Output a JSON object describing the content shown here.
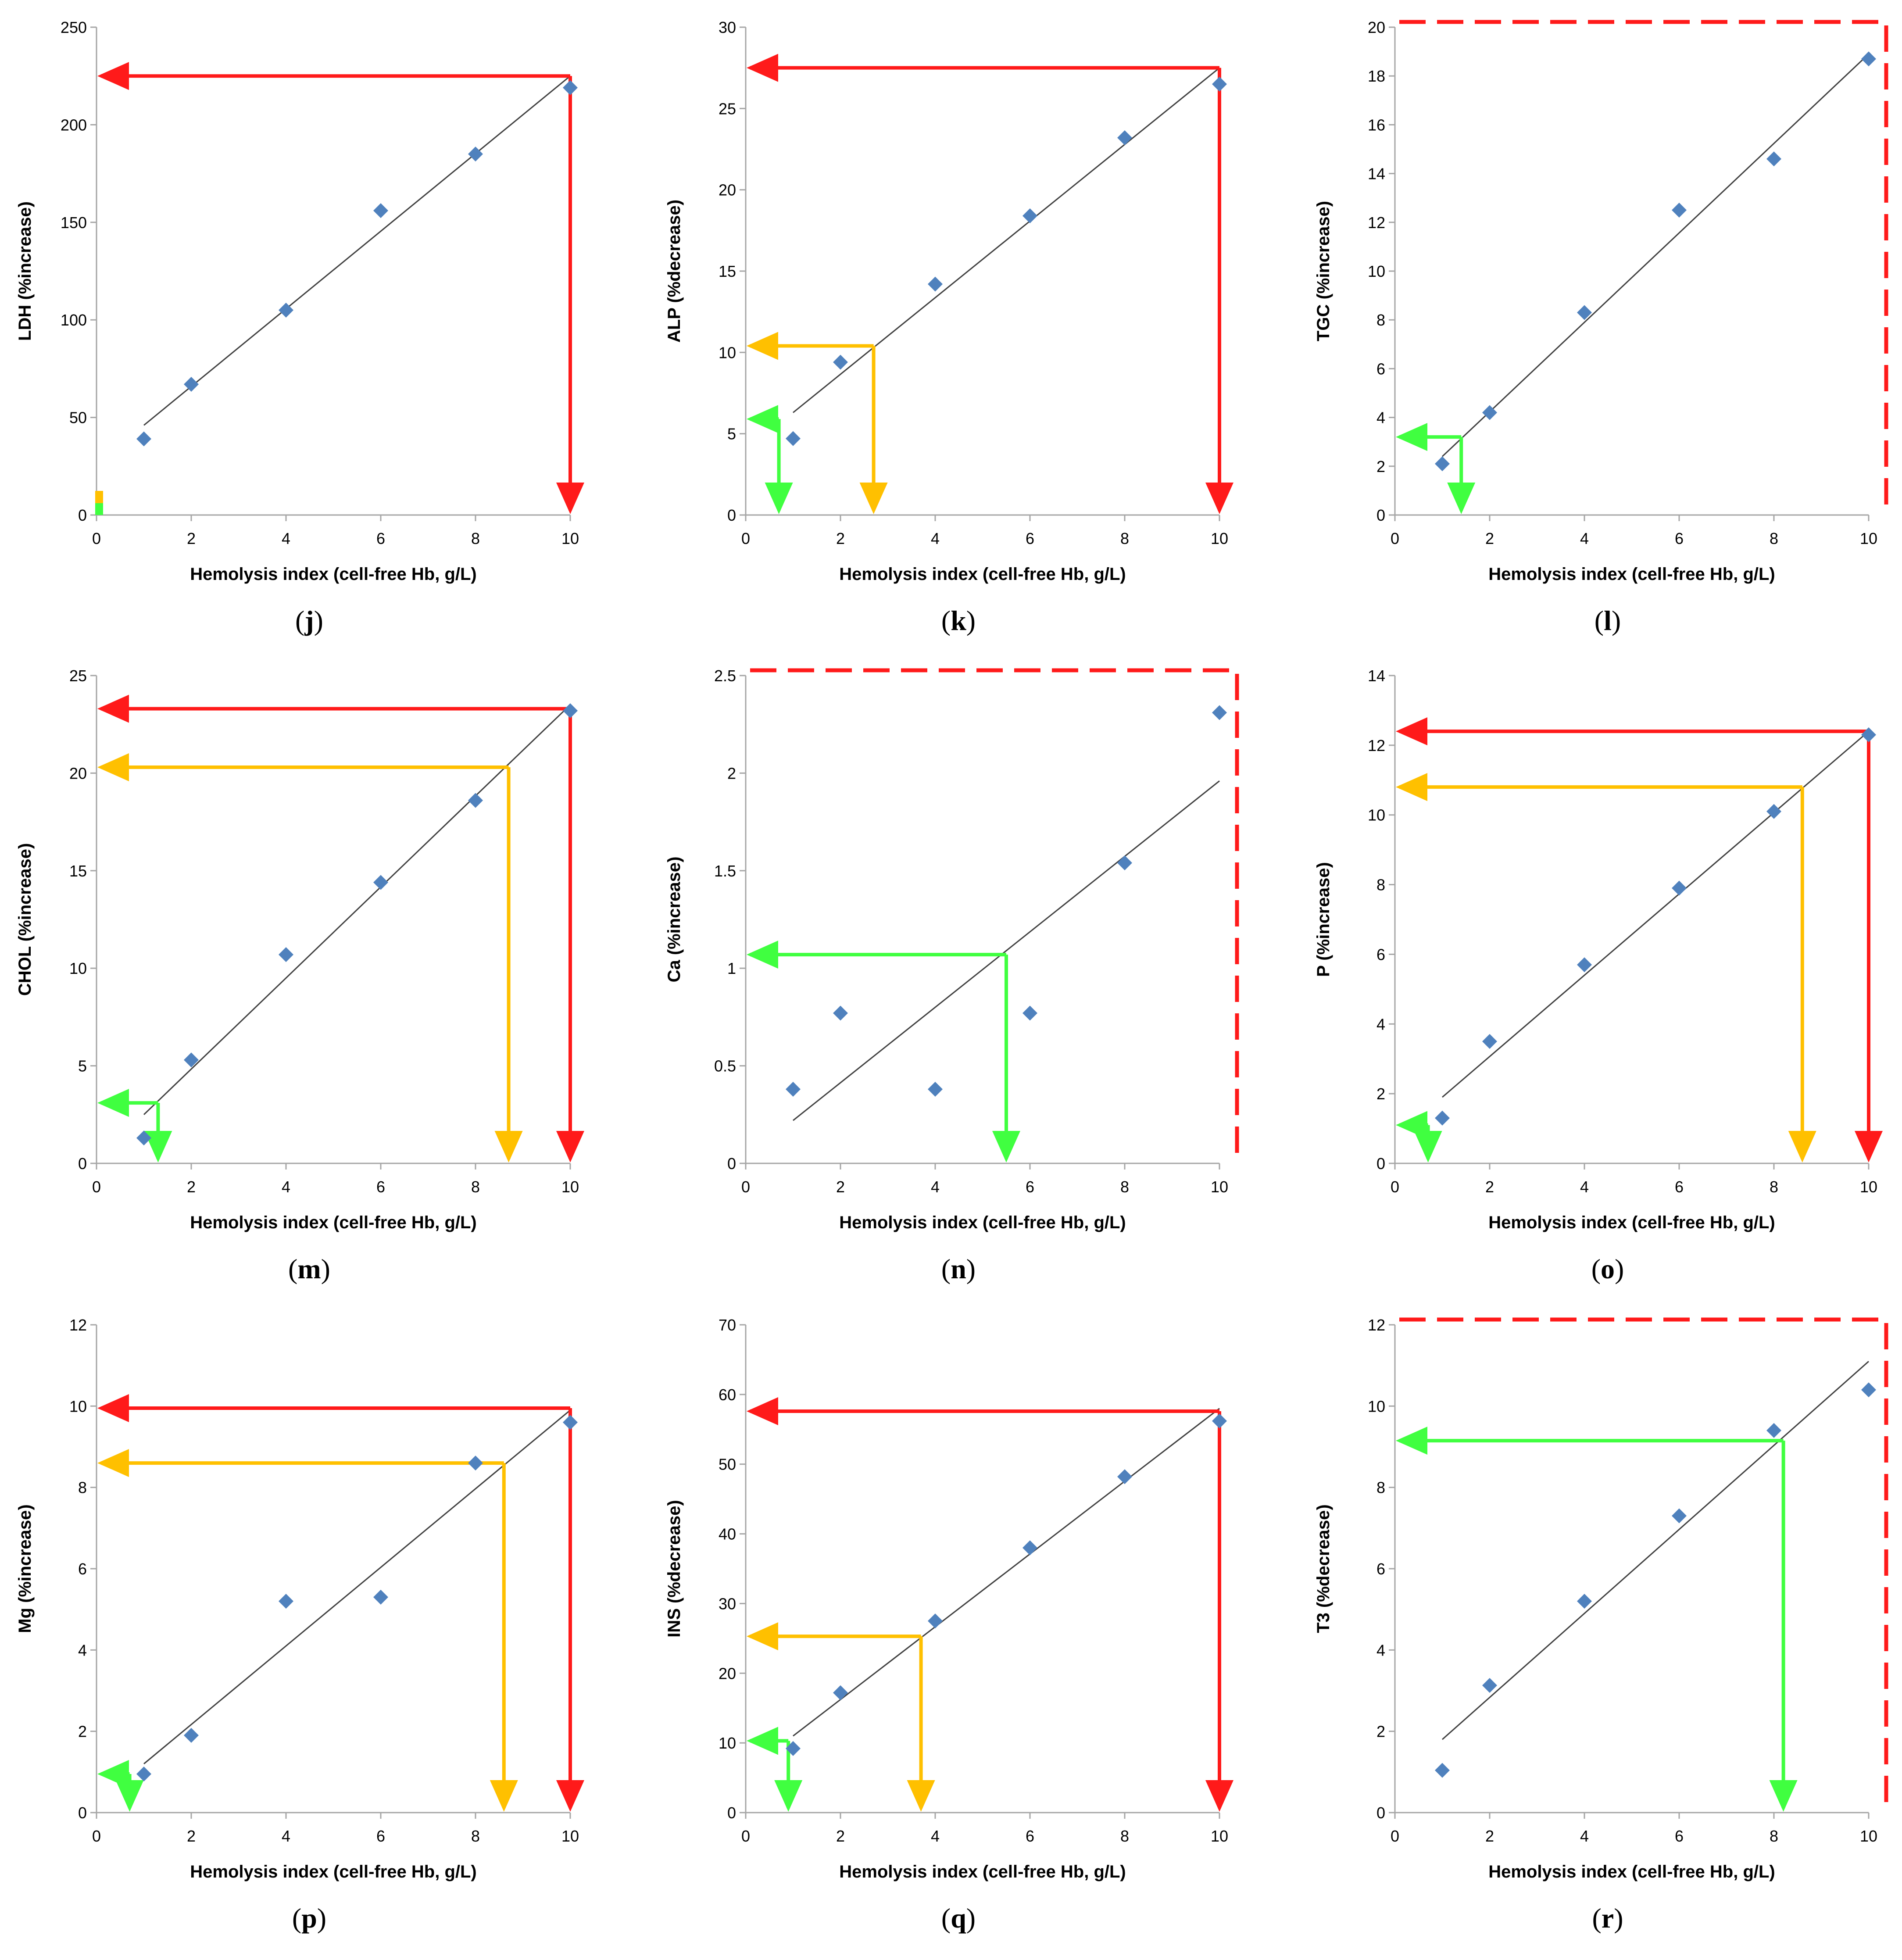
{
  "chart_data": [
    {
      "id": "j",
      "type": "scatter",
      "panel_label": "j",
      "ylabel": "LDH (%increase)",
      "xlabel": "Hemolysis index (cell-free Hb, g/L)",
      "xlim": [
        0,
        10
      ],
      "ylim": [
        0,
        250
      ],
      "xticks": [
        0,
        2,
        4,
        6,
        8,
        10
      ],
      "yticks": [
        0,
        50,
        100,
        150,
        200,
        250
      ],
      "x": [
        1,
        2,
        4,
        6,
        8,
        10
      ],
      "y": [
        39,
        67,
        105,
        156,
        185,
        219
      ],
      "trend": [
        [
          1,
          46
        ],
        [
          10,
          225
        ]
      ],
      "arrows": [
        {
          "color": "red",
          "x": 10,
          "y": 225
        }
      ],
      "legend_chip": true
    },
    {
      "id": "k",
      "type": "scatter",
      "panel_label": "k",
      "ylabel": "ALP (%decrease)",
      "xlabel": "Hemolysis index (cell-free Hb, g/L)",
      "xlim": [
        0,
        10
      ],
      "ylim": [
        0,
        30
      ],
      "xticks": [
        0,
        2,
        4,
        6,
        8,
        10
      ],
      "yticks": [
        0,
        5,
        10,
        15,
        20,
        25,
        30
      ],
      "x": [
        1,
        2,
        4,
        6,
        8,
        10
      ],
      "y": [
        4.7,
        9.4,
        14.2,
        18.4,
        23.2,
        26.5
      ],
      "trend": [
        [
          1,
          6.3
        ],
        [
          10,
          27.5
        ]
      ],
      "arrows": [
        {
          "color": "green",
          "x": 0.7,
          "y": 5.9
        },
        {
          "color": "orange",
          "x": 2.7,
          "y": 10.4
        },
        {
          "color": "red",
          "x": 10,
          "y": 27.5
        }
      ]
    },
    {
      "id": "l",
      "type": "scatter",
      "panel_label": "l",
      "ylabel": "TGC (%increase)",
      "xlabel": "Hemolysis index (cell-free Hb, g/L)",
      "xlim": [
        0,
        10
      ],
      "ylim": [
        0,
        20
      ],
      "xticks": [
        0,
        2,
        4,
        6,
        8,
        10
      ],
      "yticks": [
        0,
        2,
        4,
        6,
        8,
        10,
        12,
        14,
        16,
        18,
        20
      ],
      "x": [
        1,
        2,
        4,
        6,
        8,
        10
      ],
      "y": [
        2.1,
        4.2,
        8.3,
        12.5,
        14.6,
        18.7
      ],
      "trend": [
        [
          1,
          2.4
        ],
        [
          10,
          18.9
        ]
      ],
      "arrows": [
        {
          "color": "green",
          "x": 1.4,
          "y": 3.2
        }
      ],
      "dashed_limit": true
    },
    {
      "id": "m",
      "type": "scatter",
      "panel_label": "m",
      "ylabel": "CHOL (%increase)",
      "xlabel": "Hemolysis index (cell-free Hb, g/L)",
      "xlim": [
        0,
        10
      ],
      "ylim": [
        0,
        25
      ],
      "xticks": [
        0,
        2,
        4,
        6,
        8,
        10
      ],
      "yticks": [
        0,
        5,
        10,
        15,
        20,
        25
      ],
      "x": [
        1,
        2,
        4,
        6,
        8,
        10
      ],
      "y": [
        1.3,
        5.3,
        10.7,
        14.4,
        18.6,
        23.2
      ],
      "trend": [
        [
          1,
          2.5
        ],
        [
          10,
          23.5
        ]
      ],
      "arrows": [
        {
          "color": "green",
          "x": 1.3,
          "y": 3.1
        },
        {
          "color": "orange",
          "x": 8.7,
          "y": 20.3
        },
        {
          "color": "red",
          "x": 10,
          "y": 23.3
        }
      ]
    },
    {
      "id": "n",
      "type": "scatter",
      "panel_label": "n",
      "ylabel": "Ca (%increase)",
      "xlabel": "Hemolysis index (cell-free Hb, g/L)",
      "xlim": [
        0,
        10
      ],
      "ylim": [
        0,
        2.5
      ],
      "xticks": [
        0,
        2,
        4,
        6,
        8,
        10
      ],
      "yticks": [
        0,
        0.5,
        1,
        1.5,
        2,
        2.5
      ],
      "x": [
        1,
        2,
        4,
        6,
        8,
        10
      ],
      "y": [
        0.38,
        0.77,
        0.38,
        0.77,
        1.54,
        2.31
      ],
      "trend": [
        [
          1,
          0.22
        ],
        [
          10,
          1.96
        ]
      ],
      "arrows": [
        {
          "color": "green",
          "x": 5.5,
          "y": 1.07
        }
      ],
      "dashed_limit": true
    },
    {
      "id": "o",
      "type": "scatter",
      "panel_label": "o",
      "ylabel": "P (%increase)",
      "xlabel": "Hemolysis index (cell-free Hb, g/L)",
      "xlim": [
        0,
        10
      ],
      "ylim": [
        0,
        14
      ],
      "xticks": [
        0,
        2,
        4,
        6,
        8,
        10
      ],
      "yticks": [
        0,
        2,
        4,
        6,
        8,
        10,
        12,
        14
      ],
      "x": [
        1,
        2,
        4,
        6,
        8,
        10
      ],
      "y": [
        1.3,
        3.5,
        5.7,
        7.9,
        10.1,
        12.3
      ],
      "trend": [
        [
          1,
          1.9
        ],
        [
          10,
          12.4
        ]
      ],
      "arrows": [
        {
          "color": "green",
          "x": 0.7,
          "y": 1.1
        },
        {
          "color": "orange",
          "x": 8.6,
          "y": 10.8
        },
        {
          "color": "red",
          "x": 10,
          "y": 12.4
        }
      ]
    },
    {
      "id": "p",
      "type": "scatter",
      "panel_label": "p",
      "ylabel": "Mg (%increase)",
      "xlabel": "Hemolysis index (cell-free Hb, g/L)",
      "xlim": [
        0,
        10
      ],
      "ylim": [
        0,
        12
      ],
      "xticks": [
        0,
        2,
        4,
        6,
        8,
        10
      ],
      "yticks": [
        0,
        2,
        4,
        6,
        8,
        10,
        12
      ],
      "x": [
        1,
        2,
        4,
        6,
        8,
        10
      ],
      "y": [
        0.95,
        1.9,
        5.2,
        5.3,
        8.6,
        9.6
      ],
      "trend": [
        [
          1,
          1.2
        ],
        [
          10,
          9.9
        ]
      ],
      "arrows": [
        {
          "color": "green",
          "x": 0.7,
          "y": 0.95
        },
        {
          "color": "orange",
          "x": 8.6,
          "y": 8.6
        },
        {
          "color": "red",
          "x": 10,
          "y": 9.95
        }
      ]
    },
    {
      "id": "q",
      "type": "scatter",
      "panel_label": "q",
      "ylabel": "INS (%decrease)",
      "xlabel": "Hemolysis index (cell-free Hb, g/L)",
      "xlim": [
        0,
        10
      ],
      "ylim": [
        0,
        70
      ],
      "xticks": [
        0,
        2,
        4,
        6,
        8,
        10
      ],
      "yticks": [
        0,
        10,
        20,
        30,
        40,
        50,
        60,
        70
      ],
      "x": [
        1,
        2,
        4,
        6,
        8,
        10
      ],
      "y": [
        9.2,
        17.2,
        27.5,
        38,
        48.2,
        56.2
      ],
      "trend": [
        [
          1,
          11
        ],
        [
          10,
          58
        ]
      ],
      "arrows": [
        {
          "color": "green",
          "x": 0.9,
          "y": 10.3
        },
        {
          "color": "orange",
          "x": 3.7,
          "y": 25.3
        },
        {
          "color": "red",
          "x": 10,
          "y": 57.6
        }
      ]
    },
    {
      "id": "r",
      "type": "scatter",
      "panel_label": "r",
      "ylabel": "T3 (%decrease)",
      "xlabel": "Hemolysis index (cell-free Hb, g/L)",
      "xlim": [
        0,
        10
      ],
      "ylim": [
        0,
        12
      ],
      "xticks": [
        0,
        2,
        4,
        6,
        8,
        10
      ],
      "yticks": [
        0,
        2,
        4,
        6,
        8,
        10,
        12
      ],
      "x": [
        1,
        2,
        4,
        6,
        8,
        10
      ],
      "y": [
        1.04,
        3.13,
        5.2,
        7.3,
        9.4,
        10.4
      ],
      "trend": [
        [
          1,
          1.8
        ],
        [
          10,
          11.1
        ]
      ],
      "arrows": [
        {
          "color": "green",
          "x": 8.2,
          "y": 9.15
        }
      ],
      "dashed_limit": true
    }
  ],
  "colors": {
    "red": "#ff1a1a",
    "orange": "#ffc000",
    "green": "#40ff40",
    "marker": "#4f81bd",
    "trend": "#404040",
    "axis": "#a6a6a6"
  }
}
